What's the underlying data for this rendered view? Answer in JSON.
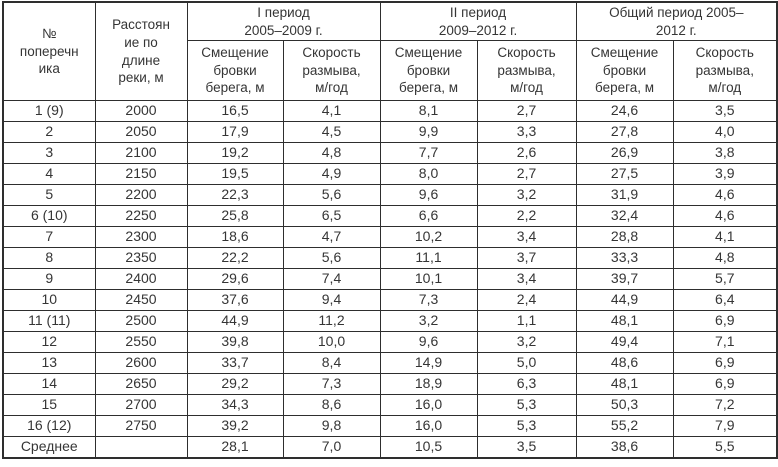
{
  "table": {
    "colors": {
      "border": "#2e2e2e",
      "text": "#353535",
      "background": "#ffffff"
    },
    "header": {
      "cross_section": "№\nпоперечн\nика",
      "distance": "Расстоян\nие по\nдлине\nреки, м",
      "period1": "I период\n2005–2009 г.",
      "period2": "II период\n2009–2012 г.",
      "period_total": "Общий период 2005–\n2012 г.",
      "displacement": "Смещение\nбровки\nберега, м",
      "erosion_rate": "Скорость\nразмыва,\nм/год"
    },
    "rows": [
      [
        "1 (9)",
        "2000",
        "16,5",
        "4,1",
        "8,1",
        "2,7",
        "24,6",
        "3,5"
      ],
      [
        "2",
        "2050",
        "17,9",
        "4,5",
        "9,9",
        "3,3",
        "27,8",
        "4,0"
      ],
      [
        "3",
        "2100",
        "19,2",
        "4,8",
        "7,7",
        "2,6",
        "26,9",
        "3,8"
      ],
      [
        "4",
        "2150",
        "19,5",
        "4,9",
        "8,0",
        "2,7",
        "27,5",
        "3,9"
      ],
      [
        "5",
        "2200",
        "22,3",
        "5,6",
        "9,6",
        "3,2",
        "31,9",
        "4,6"
      ],
      [
        "6 (10)",
        "2250",
        "25,8",
        "6,5",
        "6,6",
        "2,2",
        "32,4",
        "4,6"
      ],
      [
        "7",
        "2300",
        "18,6",
        "4,7",
        "10,2",
        "3,4",
        "28,8",
        "4,1"
      ],
      [
        "8",
        "2350",
        "22,2",
        "5,6",
        "11,1",
        "3,7",
        "33,3",
        "4,8"
      ],
      [
        "9",
        "2400",
        "29,6",
        "7,4",
        "10,1",
        "3,4",
        "39,7",
        "5,7"
      ],
      [
        "10",
        "2450",
        "37,6",
        "9,4",
        "7,3",
        "2,4",
        "44,9",
        "6,4"
      ],
      [
        "11 (11)",
        "2500",
        "44,9",
        "11,2",
        "3,2",
        "1,1",
        "48,1",
        "6,9"
      ],
      [
        "12",
        "2550",
        "39,8",
        "10,0",
        "9,6",
        "3,2",
        "49,4",
        "7,1"
      ],
      [
        "13",
        "2600",
        "33,7",
        "8,4",
        "14,9",
        "5,0",
        "48,6",
        "6,9"
      ],
      [
        "14",
        "2650",
        "29,2",
        "7,3",
        "18,9",
        "6,3",
        "48,1",
        "6,9"
      ],
      [
        "15",
        "2700",
        "34,3",
        "8,6",
        "16,0",
        "5,3",
        "50,3",
        "7,2"
      ],
      [
        "16 (12)",
        "2750",
        "39,2",
        "9,8",
        "16,0",
        "5,3",
        "55,2",
        "7,9"
      ],
      [
        "Среднее",
        "",
        "28,1",
        "7,0",
        "10,5",
        "3,5",
        "38,6",
        "5,5"
      ]
    ]
  }
}
